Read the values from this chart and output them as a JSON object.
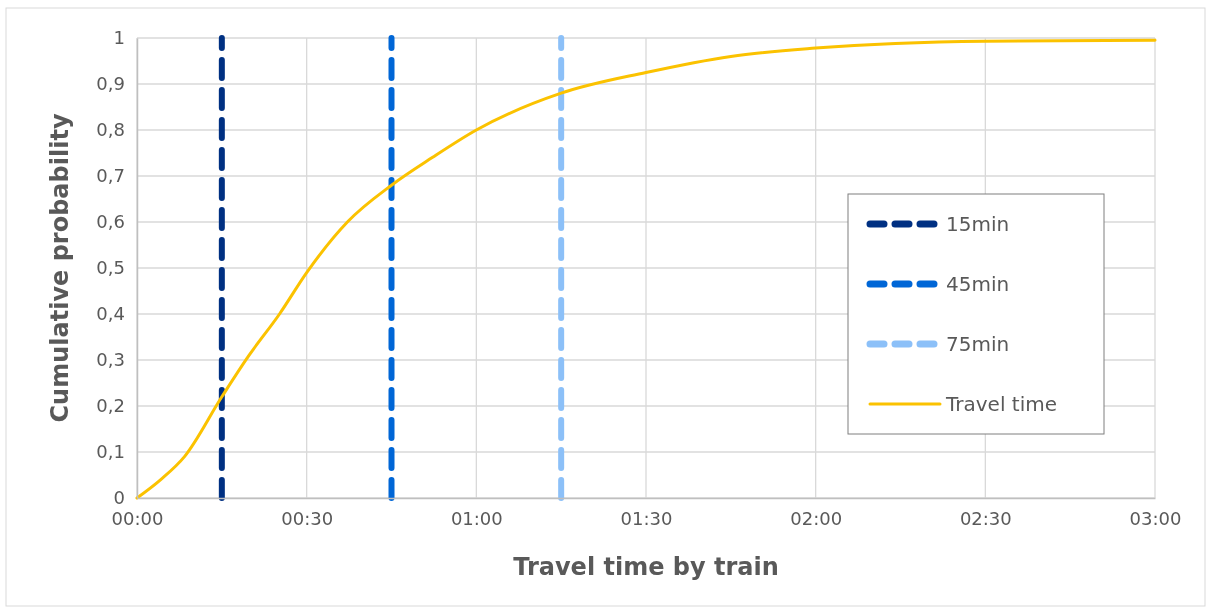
{
  "chart_data": {
    "type": "line",
    "xlabel": "Travel time by train",
    "ylabel": "Cumulative probability",
    "xlim": [
      0,
      3
    ],
    "xticks": [
      {
        "value": 0,
        "label": "00:00"
      },
      {
        "value": 0.5,
        "label": "00:30"
      },
      {
        "value": 1,
        "label": "01:00"
      },
      {
        "value": 1.5,
        "label": "01:30"
      },
      {
        "value": 2,
        "label": "02:00"
      },
      {
        "value": 2.5,
        "label": "02:30"
      },
      {
        "value": 3,
        "label": "03:00"
      }
    ],
    "ylim": [
      0,
      1
    ],
    "yticks": [
      0,
      {
        "value": 0.1,
        "label": "0,1"
      },
      {
        "value": 0.2,
        "label": "0,2"
      },
      {
        "value": 0.3,
        "label": "0,3"
      },
      {
        "value": 0.4,
        "label": "0,4"
      },
      {
        "value": 0.5,
        "label": "0,5"
      },
      {
        "value": 0.6,
        "label": "0,6"
      },
      {
        "value": 0.7,
        "label": "0,7"
      },
      {
        "value": 0.8,
        "label": "0,8"
      },
      {
        "value": 0.9,
        "label": "0,9"
      },
      1
    ],
    "grid": true,
    "legend": "right",
    "series": [
      {
        "name": "15min",
        "color": "#003082",
        "x": [
          0.25,
          0.25
        ],
        "values": [
          0,
          1
        ],
        "line_style": "dashed"
      },
      {
        "name": "45min",
        "color": "#0066d6",
        "x": [
          0.75,
          0.75
        ],
        "values": [
          0,
          1
        ],
        "line_style": "dashed"
      },
      {
        "name": "75min",
        "color": "#8cc0f8",
        "x": [
          1.25,
          1.25
        ],
        "values": [
          0,
          1
        ],
        "line_style": "dashed"
      },
      {
        "name": "Travel time",
        "color": "#fbc200",
        "x": [
          0,
          0.07,
          0.14,
          0.25,
          0.33,
          0.42,
          0.5,
          0.62,
          0.75,
          0.87,
          1,
          1.25,
          1.5,
          1.75,
          2,
          2.5,
          3
        ],
        "values": [
          0,
          0.04,
          0.09,
          0.22,
          0.31,
          0.4,
          0.49,
          0.6,
          0.68,
          0.74,
          0.8,
          0.88,
          0.925,
          0.96,
          0.978,
          0.993,
          0.995
        ],
        "line_style": "solid"
      }
    ]
  }
}
